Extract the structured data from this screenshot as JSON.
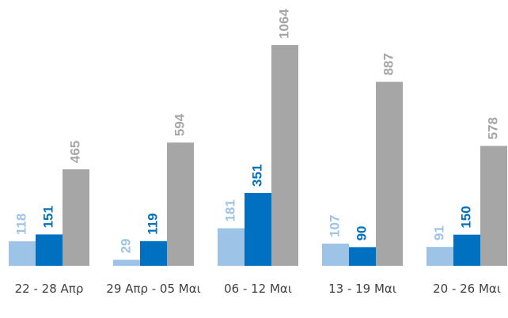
{
  "chart_data": {
    "type": "bar",
    "categories": [
      "22 - 28 Απρ",
      "29 Απρ - 05 Μαι",
      "06 - 12 Μαι",
      "13 - 19 Μαι",
      "20 - 26 Μαι"
    ],
    "series": [
      {
        "color": "#9dc3e6",
        "values": [
          118,
          29,
          181,
          107,
          91
        ]
      },
      {
        "color": "#0070c0",
        "values": [
          151,
          119,
          351,
          90,
          150
        ]
      },
      {
        "color": "#a6a6a6",
        "values": [
          465,
          594,
          1064,
          887,
          578
        ]
      }
    ]
  }
}
